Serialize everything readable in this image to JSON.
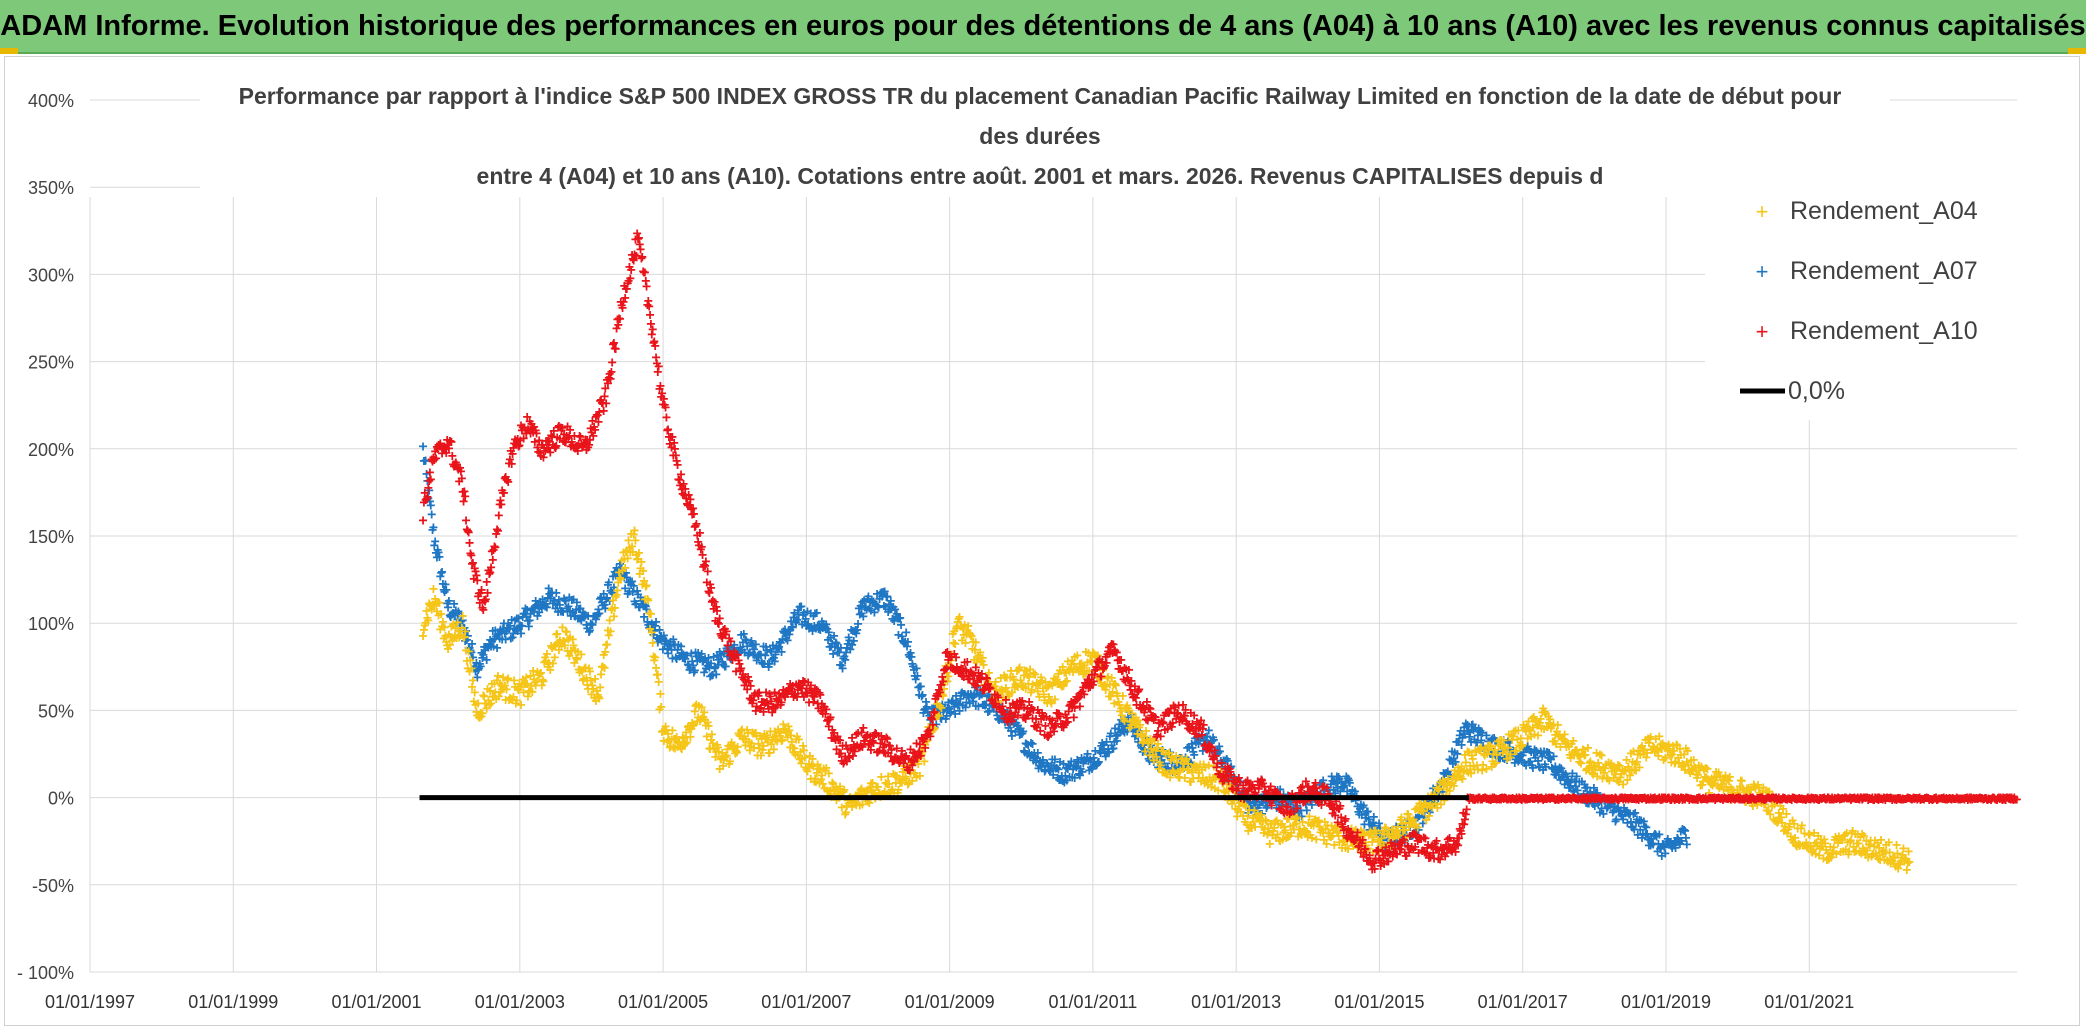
{
  "banner": {
    "title": "ADAM Informe. Evolution historique des performances en euros pour des détentions de 4 ans (A04) à 10 ans (A10) avec les revenus connus capitalisés"
  },
  "colors": {
    "banner_bg": "#7ec87a",
    "a04": "#f5c518",
    "a07": "#1f77c4",
    "a10": "#e8141a",
    "zero": "#000000",
    "grid": "#d9d9d9"
  },
  "chart_data": {
    "type": "scatter",
    "title_lines": [
      "Performance par rapport à l'indice S&P 500 INDEX GROSS TR  du placement Canadian Pacific Railway Limited en fonction de la date de début pour",
      "des durées",
      "entre 4 (A04) et 10 ans (A10). Cotations entre août. 2001 et mars. 2026. Revenus CAPITALISES depuis d"
    ],
    "y_ticks": [
      "400%",
      "350%",
      "300%",
      "250%",
      "200%",
      "150%",
      "100%",
      "50%",
      "0%",
      "-50%",
      "- 100%"
    ],
    "y_values": [
      400,
      350,
      300,
      250,
      200,
      150,
      100,
      50,
      0,
      -50,
      -100
    ],
    "ylim": [
      -100,
      400
    ],
    "x_ticks": [
      "01/01/1997",
      "01/01/1999",
      "01/01/2001",
      "01/01/2003",
      "01/01/2005",
      "01/01/2007",
      "01/01/2009",
      "01/01/2011",
      "01/01/2013",
      "01/01/2015",
      "01/01/2017",
      "01/01/2019",
      "01/01/2021"
    ],
    "x_tick_years": [
      1997,
      1999,
      2001,
      2003,
      2005,
      2007,
      2009,
      2011,
      2013,
      2015,
      2017,
      2019,
      2021
    ],
    "xlim": [
      1997,
      2023.9
    ],
    "legend_position": "top-right",
    "series": [
      {
        "name": "Rendement_A04",
        "color": "#f5c518",
        "anchors": [
          [
            2001.65,
            100
          ],
          [
            2001.8,
            115
          ],
          [
            2002.0,
            90
          ],
          [
            2002.2,
            100
          ],
          [
            2002.4,
            50
          ],
          [
            2002.7,
            65
          ],
          [
            2003.0,
            60
          ],
          [
            2003.3,
            70
          ],
          [
            2003.6,
            95
          ],
          [
            2003.8,
            80
          ],
          [
            2004.1,
            60
          ],
          [
            2004.4,
            130
          ],
          [
            2004.6,
            150
          ],
          [
            2004.8,
            110
          ],
          [
            2005.0,
            40
          ],
          [
            2005.2,
            30
          ],
          [
            2005.5,
            50
          ],
          [
            2005.8,
            20
          ],
          [
            2006.1,
            35
          ],
          [
            2006.4,
            30
          ],
          [
            2006.7,
            40
          ],
          [
            2007.0,
            20
          ],
          [
            2007.3,
            10
          ],
          [
            2007.6,
            -5
          ],
          [
            2007.9,
            5
          ],
          [
            2008.3,
            10
          ],
          [
            2008.6,
            20
          ],
          [
            2008.9,
            60
          ],
          [
            2009.1,
            100
          ],
          [
            2009.3,
            90
          ],
          [
            2009.6,
            60
          ],
          [
            2010.0,
            70
          ],
          [
            2010.4,
            60
          ],
          [
            2010.7,
            75
          ],
          [
            2011.0,
            80
          ],
          [
            2011.3,
            60
          ],
          [
            2011.6,
            40
          ],
          [
            2012.0,
            20
          ],
          [
            2012.4,
            15
          ],
          [
            2012.8,
            10
          ],
          [
            2013.1,
            -10
          ],
          [
            2013.5,
            -20
          ],
          [
            2013.9,
            -15
          ],
          [
            2014.3,
            -20
          ],
          [
            2014.7,
            -25
          ],
          [
            2015.0,
            -25
          ],
          [
            2015.4,
            -15
          ],
          [
            2015.8,
            0
          ],
          [
            2016.2,
            20
          ],
          [
            2016.6,
            25
          ],
          [
            2017.0,
            35
          ],
          [
            2017.3,
            45
          ],
          [
            2017.6,
            30
          ],
          [
            2018.0,
            20
          ],
          [
            2018.4,
            15
          ],
          [
            2018.8,
            30
          ],
          [
            2019.2,
            25
          ],
          [
            2019.6,
            10
          ],
          [
            2020.0,
            5
          ],
          [
            2020.4,
            0
          ],
          [
            2020.8,
            -20
          ],
          [
            2021.2,
            -30
          ],
          [
            2021.6,
            -25
          ],
          [
            2022.0,
            -30
          ],
          [
            2022.4,
            -35
          ]
        ],
        "noise": 14,
        "jitter_start": 2001.6,
        "jitter_end": 2022.4
      },
      {
        "name": "Rendement_A07",
        "color": "#1f77c4",
        "anchors": [
          [
            2001.65,
            200
          ],
          [
            2001.8,
            150
          ],
          [
            2002.0,
            110
          ],
          [
            2002.2,
            100
          ],
          [
            2002.4,
            75
          ],
          [
            2002.6,
            90
          ],
          [
            2003.0,
            100
          ],
          [
            2003.4,
            115
          ],
          [
            2003.7,
            110
          ],
          [
            2004.0,
            100
          ],
          [
            2004.4,
            130
          ],
          [
            2004.7,
            110
          ],
          [
            2005.0,
            90
          ],
          [
            2005.3,
            80
          ],
          [
            2005.7,
            75
          ],
          [
            2006.1,
            90
          ],
          [
            2006.5,
            80
          ],
          [
            2006.9,
            105
          ],
          [
            2007.2,
            100
          ],
          [
            2007.5,
            80
          ],
          [
            2007.8,
            110
          ],
          [
            2008.1,
            115
          ],
          [
            2008.4,
            90
          ],
          [
            2008.7,
            45
          ],
          [
            2009.0,
            50
          ],
          [
            2009.3,
            60
          ],
          [
            2009.7,
            50
          ],
          [
            2010.0,
            35
          ],
          [
            2010.3,
            20
          ],
          [
            2010.6,
            15
          ],
          [
            2010.9,
            20
          ],
          [
            2011.2,
            30
          ],
          [
            2011.5,
            45
          ],
          [
            2011.8,
            25
          ],
          [
            2012.2,
            20
          ],
          [
            2012.6,
            35
          ],
          [
            2012.9,
            15
          ],
          [
            2013.2,
            -5
          ],
          [
            2013.6,
            0
          ],
          [
            2013.9,
            -5
          ],
          [
            2014.2,
            5
          ],
          [
            2014.5,
            10
          ],
          [
            2014.8,
            -10
          ],
          [
            2015.1,
            -25
          ],
          [
            2015.5,
            -15
          ],
          [
            2015.9,
            10
          ],
          [
            2016.2,
            40
          ],
          [
            2016.6,
            30
          ],
          [
            2017.0,
            25
          ],
          [
            2017.4,
            20
          ],
          [
            2017.8,
            5
          ],
          [
            2018.2,
            -5
          ],
          [
            2018.6,
            -15
          ],
          [
            2019.0,
            -30
          ],
          [
            2019.3,
            -20
          ]
        ],
        "noise": 12,
        "jitter_start": 2001.6,
        "jitter_end": 2019.3
      },
      {
        "name": "Rendement_A10",
        "color": "#e8141a",
        "anchors": [
          [
            2001.65,
            165
          ],
          [
            2001.8,
            195
          ],
          [
            2002.0,
            205
          ],
          [
            2002.2,
            180
          ],
          [
            2002.35,
            130
          ],
          [
            2002.5,
            110
          ],
          [
            2002.7,
            160
          ],
          [
            2002.9,
            200
          ],
          [
            2003.1,
            215
          ],
          [
            2003.3,
            200
          ],
          [
            2003.6,
            210
          ],
          [
            2003.9,
            200
          ],
          [
            2004.2,
            230
          ],
          [
            2004.45,
            290
          ],
          [
            2004.65,
            320
          ],
          [
            2004.85,
            270
          ],
          [
            2005.0,
            225
          ],
          [
            2005.2,
            190
          ],
          [
            2005.5,
            150
          ],
          [
            2005.7,
            110
          ],
          [
            2006.0,
            80
          ],
          [
            2006.3,
            55
          ],
          [
            2006.6,
            55
          ],
          [
            2006.9,
            65
          ],
          [
            2007.2,
            55
          ],
          [
            2007.5,
            25
          ],
          [
            2007.8,
            35
          ],
          [
            2008.1,
            30
          ],
          [
            2008.4,
            20
          ],
          [
            2008.7,
            35
          ],
          [
            2008.95,
            80
          ],
          [
            2009.2,
            75
          ],
          [
            2009.5,
            65
          ],
          [
            2009.8,
            50
          ],
          [
            2010.1,
            50
          ],
          [
            2010.4,
            40
          ],
          [
            2010.7,
            50
          ],
          [
            2011.0,
            70
          ],
          [
            2011.3,
            85
          ],
          [
            2011.6,
            60
          ],
          [
            2011.9,
            40
          ],
          [
            2012.2,
            50
          ],
          [
            2012.5,
            40
          ],
          [
            2012.8,
            15
          ],
          [
            2013.1,
            5
          ],
          [
            2013.4,
            5
          ],
          [
            2013.7,
            -5
          ],
          [
            2014.0,
            5
          ],
          [
            2014.3,
            0
          ],
          [
            2014.6,
            -20
          ],
          [
            2014.9,
            -35
          ],
          [
            2015.2,
            -30
          ],
          [
            2015.5,
            -25
          ],
          [
            2015.8,
            -30
          ],
          [
            2016.1,
            -25
          ],
          [
            2016.25,
            0
          ],
          [
            2023.9,
            0
          ]
        ],
        "noise": 12,
        "jitter_start": 2001.6,
        "jitter_end": 2016.25
      }
    ],
    "zero_line": {
      "name": "0,0%",
      "from_year": 2001.6,
      "to_year": 2016.25,
      "value": 0
    }
  }
}
